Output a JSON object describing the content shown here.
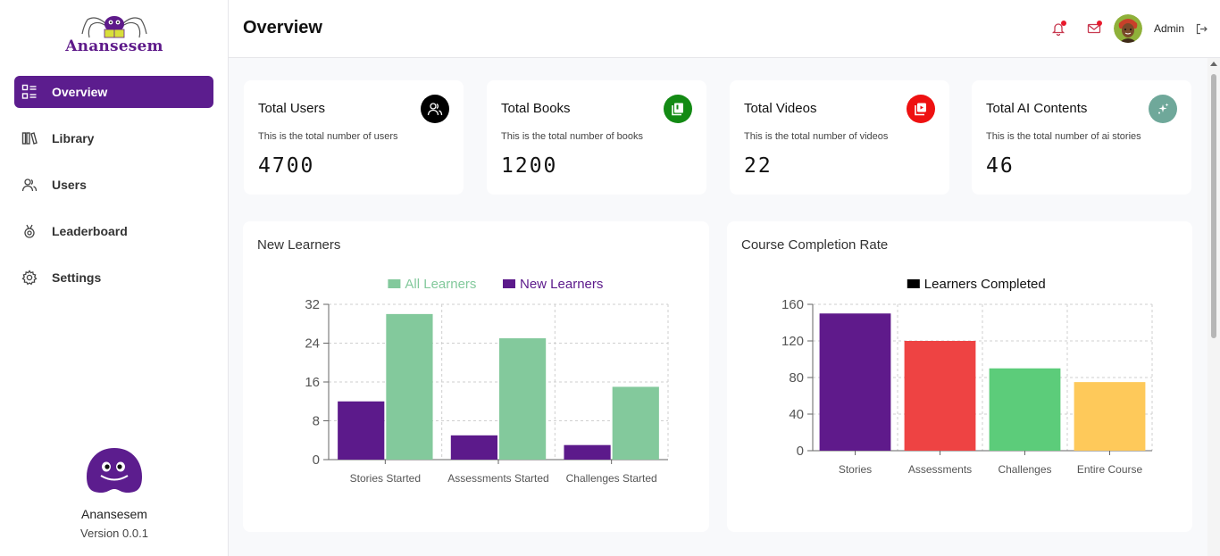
{
  "app": {
    "name": "Anansesem",
    "version": "Version 0.0.1",
    "logo_text": "Anansesem"
  },
  "sidebar": {
    "items": [
      {
        "label": "Overview",
        "icon": "overview-icon",
        "active": true
      },
      {
        "label": "Library",
        "icon": "library-icon",
        "active": false
      },
      {
        "label": "Users",
        "icon": "users-icon",
        "active": false
      },
      {
        "label": "Leaderboard",
        "icon": "leaderboard-icon",
        "active": false
      },
      {
        "label": "Settings",
        "icon": "settings-icon",
        "active": false
      }
    ]
  },
  "header": {
    "title": "Overview",
    "user_name": "Admin"
  },
  "cards": [
    {
      "title": "Total Users",
      "desc": "This is the total number of users",
      "value": "4700",
      "icon": "users-icon",
      "color": "#000000"
    },
    {
      "title": "Total Books",
      "desc": "This is the total number of books",
      "value": "1200",
      "icon": "books-icon",
      "color": "#138a14"
    },
    {
      "title": "Total Videos",
      "desc": "This is the total number of videos",
      "value": "22",
      "icon": "video-icon",
      "color": "#ee1111"
    },
    {
      "title": "Total AI Contents",
      "desc": "This is the total number of ai stories",
      "value": "46",
      "icon": "sparkle-icon",
      "color": "#6fa89a"
    }
  ],
  "panels": {
    "learners_title": "New Learners",
    "completion_title": "Course Completion Rate"
  },
  "chart_data": [
    {
      "type": "bar",
      "title": "",
      "categories": [
        "Stories Started",
        "Assessments Started",
        "Challenges Started"
      ],
      "series": [
        {
          "name": "New Learners",
          "values": [
            12,
            5,
            3
          ],
          "color": "#5c1a8b"
        },
        {
          "name": "All Learners",
          "values": [
            30,
            25,
            15
          ],
          "color": "#83c99c"
        }
      ],
      "legend": [
        "All Learners",
        "New Learners"
      ],
      "legend_colors": [
        "#83c99c",
        "#5c1a8b"
      ],
      "yticks": [
        0,
        8,
        16,
        24,
        32
      ],
      "ylim": [
        0,
        32
      ],
      "grid": true,
      "legend_position": "top-center"
    },
    {
      "type": "bar",
      "title": "",
      "categories": [
        "Stories",
        "Assessments",
        "Challenges",
        "Entire Course"
      ],
      "series": [
        {
          "name": "Learners Completed",
          "values": [
            150,
            120,
            90,
            75
          ],
          "colors": [
            "#5f1a8b",
            "#ee4343",
            "#5ccc7a",
            "#fec95a"
          ]
        }
      ],
      "legend": [
        "Learners Completed"
      ],
      "legend_colors": [
        "#000000"
      ],
      "yticks": [
        0,
        40,
        80,
        120,
        160
      ],
      "ylim": [
        0,
        160
      ],
      "grid": true,
      "legend_position": "top-center"
    }
  ]
}
